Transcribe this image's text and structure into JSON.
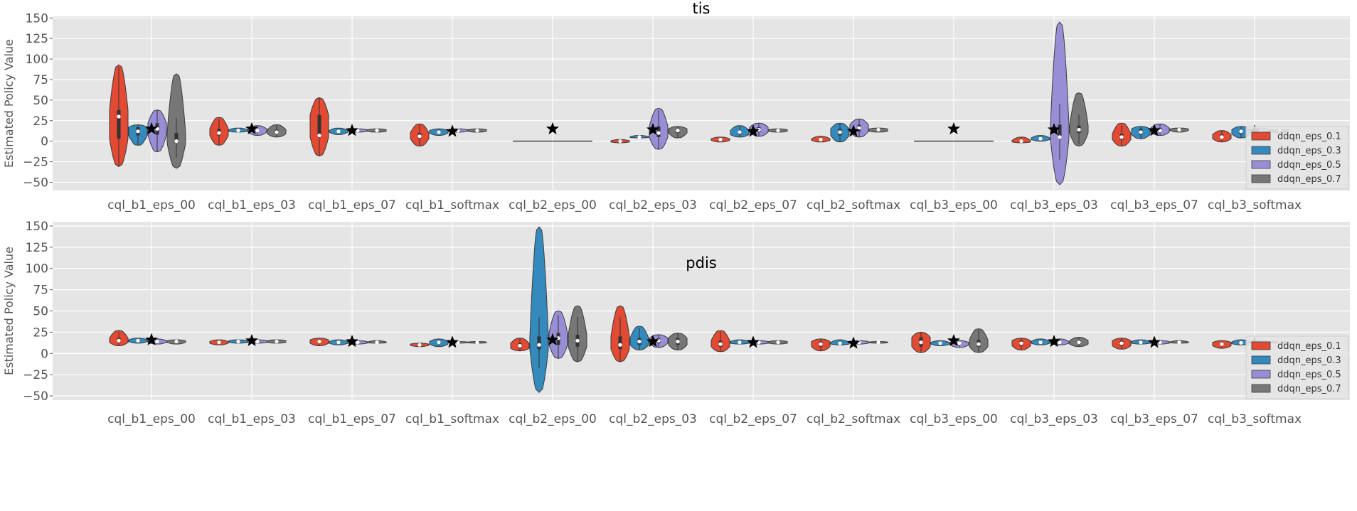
{
  "chart_data": [
    {
      "type": "violin",
      "title": "tis",
      "xlabel": "",
      "ylabel": "Estimated Policy Value",
      "yticks": [
        -50,
        -25,
        0,
        25,
        50,
        75,
        100,
        125,
        150
      ],
      "ylim": [
        -60,
        152
      ],
      "grid": true,
      "legend_position": "lower-right",
      "categories": [
        "cql_b1_eps_00",
        "cql_b1_eps_03",
        "cql_b1_eps_07",
        "cql_b1_softmax",
        "cql_b2_eps_00",
        "cql_b2_eps_03",
        "cql_b2_eps_07",
        "cql_b2_softmax",
        "cql_b3_eps_00",
        "cql_b3_eps_03",
        "cql_b3_eps_07",
        "cql_b3_softmax"
      ],
      "series": [
        {
          "name": "ddqn_eps_0.1",
          "color": "#E24A33",
          "violins": [
            {
              "min": -31,
              "q1": 3,
              "median": 30,
              "q3": 38,
              "max": 93
            },
            {
              "min": -5,
              "q1": 7,
              "median": 10,
              "q3": 15,
              "max": 29
            },
            {
              "min": -18,
              "q1": 5,
              "median": 7,
              "q3": 32,
              "max": 53
            },
            {
              "min": -6,
              "q1": 3,
              "median": 6,
              "q3": 10,
              "max": 21
            },
            {
              "flat": 0
            },
            {
              "min": -2,
              "q1": -1,
              "median": 0,
              "q3": 0.5,
              "max": 2
            },
            {
              "min": -1,
              "q1": 1,
              "median": 2,
              "q3": 3,
              "max": 5
            },
            {
              "min": -1,
              "q1": 1,
              "median": 2,
              "q3": 3,
              "max": 6
            },
            {
              "flat": 0
            },
            {
              "min": -2,
              "q1": -1,
              "median": 0,
              "q3": 1,
              "max": 5
            },
            {
              "min": -6,
              "q1": 2,
              "median": 5,
              "q3": 9,
              "max": 22
            },
            {
              "min": -1,
              "q1": 3,
              "median": 5,
              "q3": 8,
              "max": 13
            }
          ]
        },
        {
          "name": "ddqn_eps_0.3",
          "color": "#348ABD",
          "violins": [
            {
              "min": -5,
              "q1": 7,
              "median": 12,
              "q3": 17,
              "max": 20
            },
            {
              "min": 11,
              "q1": 12,
              "median": 13,
              "q3": 14,
              "max": 16
            },
            {
              "min": 8,
              "q1": 11,
              "median": 12,
              "q3": 13,
              "max": 16
            },
            {
              "min": 7,
              "q1": 10,
              "median": 11,
              "q3": 13,
              "max": 15
            },
            {
              "flat": 0
            },
            {
              "min": 4,
              "q1": 4.5,
              "median": 5,
              "q3": 5.5,
              "max": 7
            },
            {
              "min": 5,
              "q1": 8,
              "median": 11,
              "q3": 13,
              "max": 19
            },
            {
              "min": -1,
              "q1": 7,
              "median": 11,
              "q3": 15,
              "max": 22
            },
            {
              "flat": 0
            },
            {
              "min": 0,
              "q1": 2,
              "median": 3,
              "q3": 4,
              "max": 7
            },
            {
              "min": 3,
              "q1": 8,
              "median": 11,
              "q3": 15,
              "max": 18
            },
            {
              "min": 4,
              "q1": 9,
              "median": 12,
              "q3": 14,
              "max": 18
            }
          ]
        },
        {
          "name": "ddqn_eps_0.5",
          "color": "#988ED5",
          "violins": [
            {
              "min": -13,
              "q1": 8,
              "median": 15,
              "q3": 22,
              "max": 38
            },
            {
              "min": 7,
              "q1": 11,
              "median": 13,
              "q3": 15,
              "max": 19
            },
            {
              "min": 11,
              "q1": 12,
              "median": 13,
              "q3": 14,
              "max": 15
            },
            {
              "min": 11,
              "q1": 12,
              "median": 13,
              "q3": 14,
              "max": 15
            },
            {
              "flat": 0
            },
            {
              "min": -10,
              "q1": 5,
              "median": 10,
              "q3": 18,
              "max": 40
            },
            {
              "min": 6,
              "q1": 11,
              "median": 14,
              "q3": 17,
              "max": 22
            },
            {
              "min": 5,
              "q1": 12,
              "median": 16,
              "q3": 20,
              "max": 27
            },
            {
              "flat": 0
            },
            {
              "min": -53,
              "q1": 3,
              "median": 5,
              "q3": 20,
              "max": 145
            },
            {
              "min": 7,
              "q1": 11,
              "median": 13,
              "q3": 16,
              "max": 21
            },
            {
              "min": 10,
              "q1": 12,
              "median": 13,
              "q3": 14,
              "max": 16
            }
          ]
        },
        {
          "name": "ddqn_eps_0.7",
          "color": "#777777",
          "violins": [
            {
              "min": -33,
              "q1": -2,
              "median": 0,
              "q3": 10,
              "max": 82
            },
            {
              "min": 5,
              "q1": 9,
              "median": 11,
              "q3": 14,
              "max": 20
            },
            {
              "min": 11,
              "q1": 12,
              "median": 13,
              "q3": 14,
              "max": 15
            },
            {
              "min": 11,
              "q1": 12,
              "median": 13,
              "q3": 14,
              "max": 15
            },
            {
              "flat": 0
            },
            {
              "min": 4,
              "q1": 10,
              "median": 13,
              "q3": 15,
              "max": 18
            },
            {
              "min": 11,
              "q1": 12,
              "median": 13,
              "q3": 14,
              "max": 15
            },
            {
              "min": 11,
              "q1": 12,
              "median": 14,
              "q3": 15,
              "max": 16
            },
            {
              "flat": 0
            },
            {
              "min": -6,
              "q1": 10,
              "median": 14,
              "q3": 19,
              "max": 59
            },
            {
              "min": 11,
              "q1": 13,
              "median": 14,
              "q3": 15,
              "max": 16
            },
            {
              "min": 10,
              "q1": 12,
              "median": 13,
              "q3": 14,
              "max": 14
            }
          ]
        }
      ],
      "star_values": [
        15,
        15,
        13,
        12,
        15,
        14,
        12,
        12,
        15,
        14,
        13,
        12
      ]
    },
    {
      "type": "violin",
      "title": "pdis",
      "xlabel": "",
      "ylabel": "Estimated Policy Value",
      "yticks": [
        -50,
        -25,
        0,
        25,
        50,
        75,
        100,
        125,
        150
      ],
      "ylim": [
        -55,
        155
      ],
      "grid": true,
      "legend_position": "lower-right",
      "categories": [
        "cql_b1_eps_00",
        "cql_b1_eps_03",
        "cql_b1_eps_07",
        "cql_b1_softmax",
        "cql_b2_eps_00",
        "cql_b2_eps_03",
        "cql_b2_eps_07",
        "cql_b2_softmax",
        "cql_b3_eps_00",
        "cql_b3_eps_03",
        "cql_b3_eps_07",
        "cql_b3_softmax"
      ],
      "series": [
        {
          "name": "ddqn_eps_0.1",
          "color": "#E24A33",
          "violins": [
            {
              "min": 9,
              "q1": 13,
              "median": 15,
              "q3": 18,
              "max": 27
            },
            {
              "min": 10,
              "q1": 12,
              "median": 13,
              "q3": 14,
              "max": 16
            },
            {
              "min": 9,
              "q1": 12,
              "median": 14,
              "q3": 16,
              "max": 18
            },
            {
              "min": 8,
              "q1": 9.5,
              "median": 10,
              "q3": 11,
              "max": 12
            },
            {
              "min": 3,
              "q1": 6,
              "median": 9,
              "q3": 12,
              "max": 18
            },
            {
              "min": -10,
              "q1": 5,
              "median": 10,
              "q3": 20,
              "max": 56
            },
            {
              "min": 2,
              "q1": 8,
              "median": 11,
              "q3": 15,
              "max": 27
            },
            {
              "min": 3,
              "q1": 8,
              "median": 11,
              "q3": 14,
              "max": 17
            },
            {
              "min": 1,
              "q1": 8,
              "median": 13,
              "q3": 19,
              "max": 25
            },
            {
              "min": 4,
              "q1": 9,
              "median": 12,
              "q3": 15,
              "max": 18
            },
            {
              "min": 5,
              "q1": 9,
              "median": 12,
              "q3": 15,
              "max": 18
            },
            {
              "min": 6,
              "q1": 9,
              "median": 11,
              "q3": 13,
              "max": 15
            }
          ]
        },
        {
          "name": "ddqn_eps_0.3",
          "color": "#348ABD",
          "violins": [
            {
              "min": 12,
              "q1": 14,
              "median": 15,
              "q3": 16,
              "max": 18
            },
            {
              "min": 12,
              "q1": 13,
              "median": 14,
              "q3": 15,
              "max": 16
            },
            {
              "min": 10,
              "q1": 12,
              "median": 13,
              "q3": 14,
              "max": 16
            },
            {
              "min": 8,
              "q1": 11,
              "median": 13,
              "q3": 14,
              "max": 17
            },
            {
              "min": -46,
              "q1": 5,
              "median": 10,
              "q3": 20,
              "max": 149
            },
            {
              "min": 4,
              "q1": 10,
              "median": 14,
              "q3": 18,
              "max": 32
            },
            {
              "min": 11,
              "q1": 12,
              "median": 13,
              "q3": 14,
              "max": 16
            },
            {
              "min": 10,
              "q1": 11,
              "median": 12,
              "q3": 13,
              "max": 16
            },
            {
              "min": 9,
              "q1": 11,
              "median": 12,
              "q3": 13,
              "max": 15
            },
            {
              "min": 10,
              "q1": 12,
              "median": 13,
              "q3": 14,
              "max": 17
            },
            {
              "min": 11,
              "q1": 12,
              "median": 13,
              "q3": 14,
              "max": 16
            },
            {
              "min": 10,
              "q1": 11.5,
              "median": 12.5,
              "q3": 13.5,
              "max": 16
            }
          ]
        },
        {
          "name": "ddqn_eps_0.5",
          "color": "#988ED5",
          "violins": [
            {
              "min": 11,
              "q1": 13,
              "median": 14,
              "q3": 15,
              "max": 17
            },
            {
              "min": 12,
              "q1": 13,
              "median": 14,
              "q3": 15,
              "max": 16
            },
            {
              "min": 11,
              "q1": 12,
              "median": 13,
              "q3": 14,
              "max": 15
            },
            {
              "min": 12,
              "q1": 12.5,
              "median": 13,
              "q3": 13.5,
              "max": 14
            },
            {
              "min": -6,
              "q1": 10,
              "median": 18,
              "q3": 24,
              "max": 50
            },
            {
              "min": 7,
              "q1": 12,
              "median": 15,
              "q3": 18,
              "max": 22
            },
            {
              "min": 11,
              "q1": 12,
              "median": 13,
              "q3": 14,
              "max": 15
            },
            {
              "min": 11,
              "q1": 12,
              "median": 13,
              "q3": 14,
              "max": 15
            },
            {
              "min": 7,
              "q1": 10,
              "median": 12,
              "q3": 13,
              "max": 15
            },
            {
              "min": 10,
              "q1": 12,
              "median": 13,
              "q3": 14,
              "max": 17
            },
            {
              "min": 11,
              "q1": 12,
              "median": 13,
              "q3": 14,
              "max": 15
            },
            {
              "min": 11,
              "q1": 12,
              "median": 13,
              "q3": 14,
              "max": 15
            }
          ]
        },
        {
          "name": "ddqn_eps_0.7",
          "color": "#777777",
          "violins": [
            {
              "min": 11,
              "q1": 13,
              "median": 14,
              "q3": 15,
              "max": 16
            },
            {
              "min": 12,
              "q1": 13,
              "median": 14,
              "q3": 15,
              "max": 16
            },
            {
              "min": 12,
              "q1": 12.5,
              "median": 13,
              "q3": 13.5,
              "max": 15
            },
            {
              "min": 12,
              "q1": 12.5,
              "median": 13,
              "q3": 13.5,
              "max": 14
            },
            {
              "min": -10,
              "q1": 8,
              "median": 15,
              "q3": 22,
              "max": 56
            },
            {
              "min": 4,
              "q1": 10,
              "median": 14,
              "q3": 18,
              "max": 24
            },
            {
              "min": 11,
              "q1": 12,
              "median": 13,
              "q3": 14,
              "max": 15
            },
            {
              "min": 12,
              "q1": 12.5,
              "median": 13,
              "q3": 13.5,
              "max": 14
            },
            {
              "min": 1,
              "q1": 8,
              "median": 11,
              "q3": 16,
              "max": 29
            },
            {
              "min": 8,
              "q1": 11,
              "median": 13,
              "q3": 15,
              "max": 19
            },
            {
              "min": 12,
              "q1": 12.5,
              "median": 13,
              "q3": 13.5,
              "max": 15
            },
            {
              "min": 12,
              "q1": 12.5,
              "median": 13,
              "q3": 13.5,
              "max": 14
            }
          ]
        }
      ],
      "star_values": [
        16,
        15,
        14,
        13,
        16,
        14,
        13,
        12,
        15,
        14,
        13,
        12
      ]
    }
  ]
}
